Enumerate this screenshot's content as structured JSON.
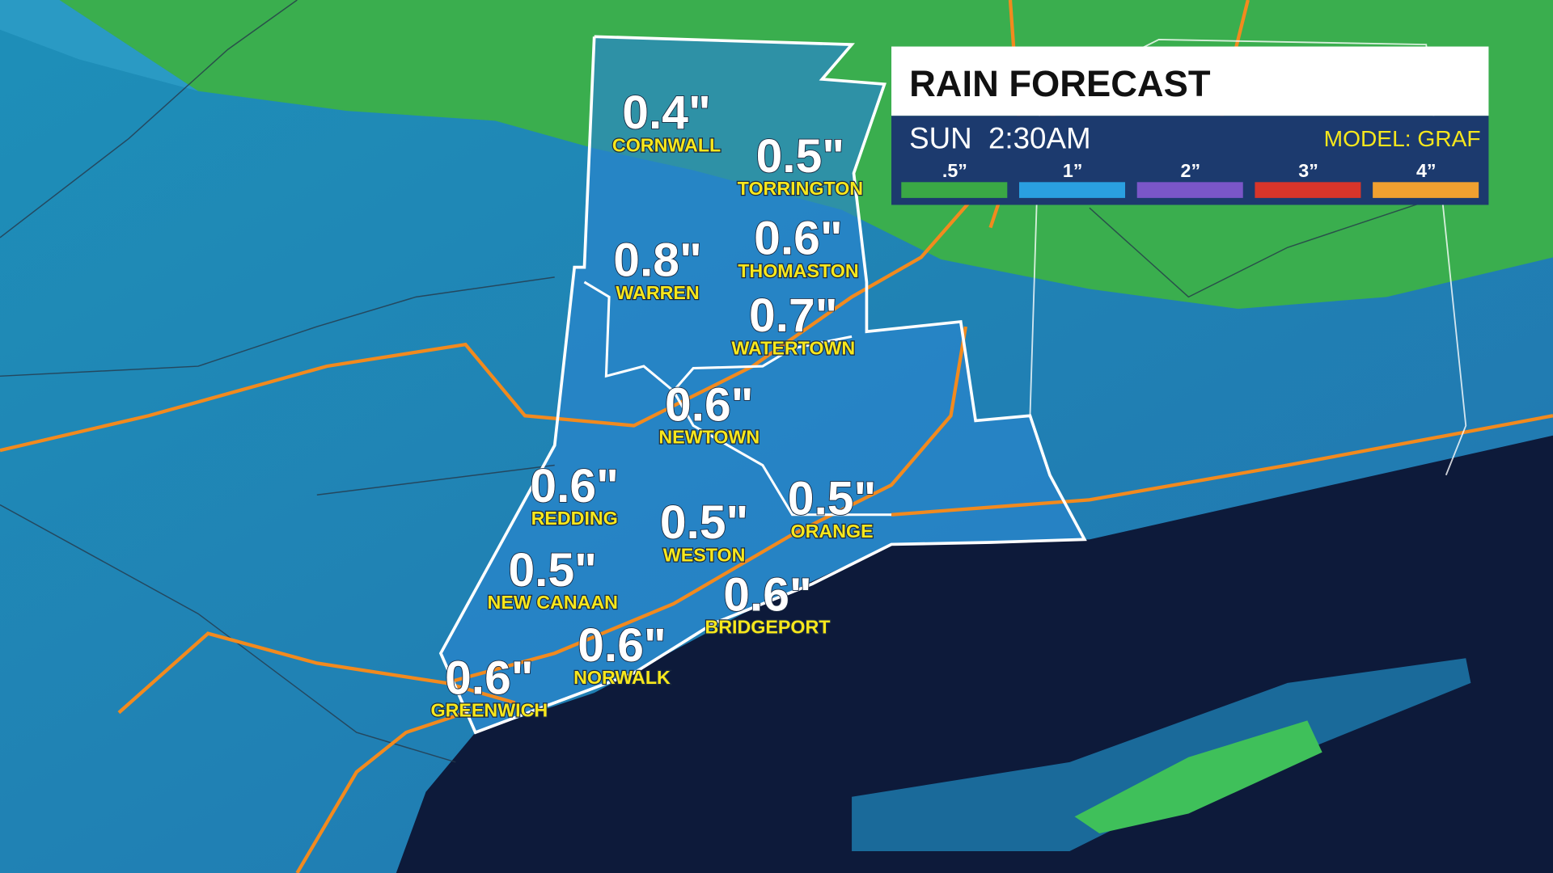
{
  "header": {
    "title": "RAIN FORECAST",
    "time": "SUN  2:30AM",
    "model": "MODEL: GRAF"
  },
  "legend": [
    {
      "label": ".5”",
      "color": "#3aa845"
    },
    {
      "label": "1”",
      "color": "#2a9fe0"
    },
    {
      "label": "2”",
      "color": "#7a56c8"
    },
    {
      "label": "3”",
      "color": "#d8352a"
    },
    {
      "label": "4”",
      "color": "#f0a030"
    }
  ],
  "locations": [
    {
      "name": "CORNWALL",
      "amount": "0.4\""
    },
    {
      "name": "TORRINGTON",
      "amount": "0.5\""
    },
    {
      "name": "WARREN",
      "amount": "0.8\""
    },
    {
      "name": "THOMASTON",
      "amount": "0.6\""
    },
    {
      "name": "WATERTOWN",
      "amount": "0.7\""
    },
    {
      "name": "NEWTOWN",
      "amount": "0.6\""
    },
    {
      "name": "REDDING",
      "amount": "0.6\""
    },
    {
      "name": "WESTON",
      "amount": "0.5\""
    },
    {
      "name": "ORANGE",
      "amount": "0.5\""
    },
    {
      "name": "NEW CANAAN",
      "amount": "0.5\""
    },
    {
      "name": "BRIDGEPORT",
      "amount": "0.6\""
    },
    {
      "name": "NORWALK",
      "amount": "0.6\""
    },
    {
      "name": "GREENWICH",
      "amount": "0.6\""
    }
  ]
}
